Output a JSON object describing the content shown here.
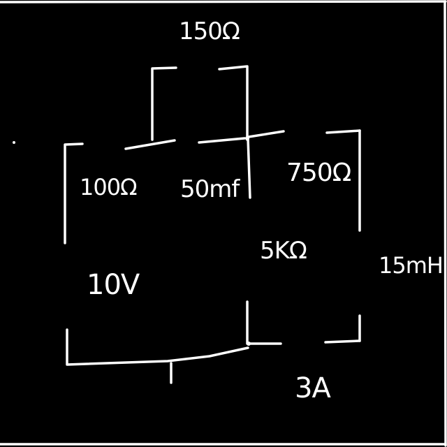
{
  "diagram": {
    "labels": {
      "r150": "150Ω",
      "r100": "100Ω",
      "c50": "50mf",
      "r750": "750Ω",
      "r5k": "5KΩ",
      "l15": "15mH",
      "v10": "10V",
      "i3": "3A"
    },
    "colors": {
      "background": "#000000",
      "ink": "#ffffff"
    }
  }
}
